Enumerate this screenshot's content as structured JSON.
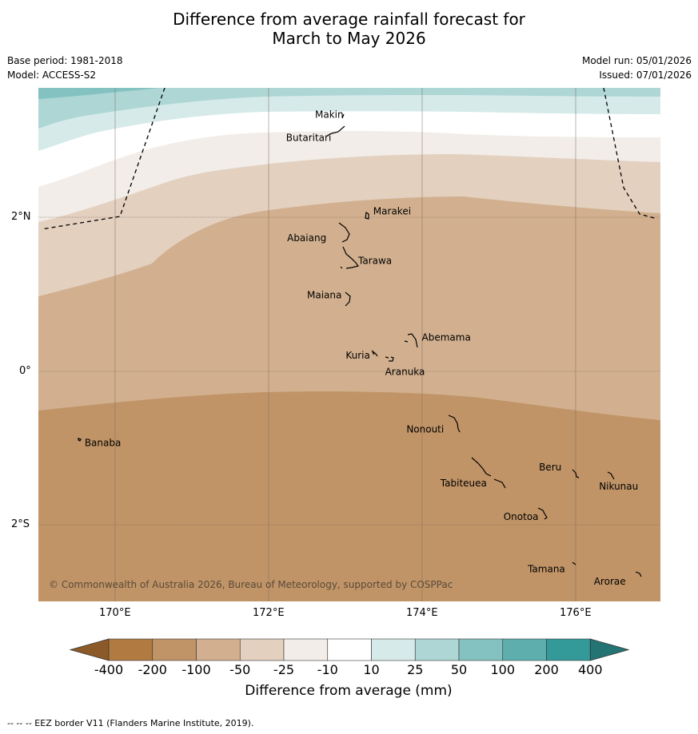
{
  "title": {
    "line1": "Difference from average rainfall forecast for",
    "line2": "March to May 2026"
  },
  "meta": {
    "base_period": "Base period: 1981-2018",
    "model": "Model: ACCESS-S2",
    "model_run": "Model run: 05/01/2026",
    "issued": "Issued: 07/01/2026"
  },
  "map": {
    "copyright": "© Commonwealth of Australia 2026, Bureau of Meteorology, supported by COSPPac",
    "longitude_ticks": [
      "170°E",
      "172°E",
      "174°E",
      "176°E"
    ],
    "latitude_ticks": [
      "2°N",
      "0°",
      "2°S"
    ],
    "islands": [
      {
        "name": "Makin",
        "lon": 173.0,
        "lat": 3.38
      },
      {
        "name": "Butaritari",
        "lon": 172.8,
        "lat": 3.1
      },
      {
        "name": "Marakei",
        "lon": 173.3,
        "lat": 2.0
      },
      {
        "name": "Abaiang",
        "lon": 172.97,
        "lat": 1.8
      },
      {
        "name": "Tarawa",
        "lon": 173.0,
        "lat": 1.4
      },
      {
        "name": "Maiana",
        "lon": 173.0,
        "lat": 0.95
      },
      {
        "name": "Abemama",
        "lon": 173.87,
        "lat": 0.4
      },
      {
        "name": "Kuria",
        "lon": 173.42,
        "lat": 0.23
      },
      {
        "name": "Aranuka",
        "lon": 173.6,
        "lat": 0.16
      },
      {
        "name": "Nonouti",
        "lon": 174.42,
        "lat": -0.65
      },
      {
        "name": "Banaba",
        "lon": 169.54,
        "lat": -0.87
      },
      {
        "name": "Tabiteuea",
        "lon": 174.8,
        "lat": -1.35
      },
      {
        "name": "Beru",
        "lon": 175.98,
        "lat": -1.33
      },
      {
        "name": "Nikunau",
        "lon": 176.45,
        "lat": -1.35
      },
      {
        "name": "Onotoa",
        "lon": 175.57,
        "lat": -1.85
      },
      {
        "name": "Tamana",
        "lon": 175.98,
        "lat": -2.5
      },
      {
        "name": "Arorae",
        "lon": 176.82,
        "lat": -2.65
      }
    ]
  },
  "colorbar": {
    "tick_labels": [
      "-400",
      "-200",
      "-100",
      "-50",
      "-25",
      "-10",
      "10",
      "25",
      "50",
      "100",
      "200",
      "400"
    ],
    "colors": [
      "#b07a41",
      "#c09467",
      "#d2b08f",
      "#e3d0bf",
      "#f2ede8",
      "#ffffff",
      "#d5eae9",
      "#add6d5",
      "#84c2c1",
      "#5daead",
      "#339a99",
      "#247473",
      "#8c5a28"
    ],
    "label": "Difference from average (mm)"
  },
  "footer": {
    "legend": "--  --  -- EEZ border V11 (Flanders Marine Institute, 2019)."
  }
}
